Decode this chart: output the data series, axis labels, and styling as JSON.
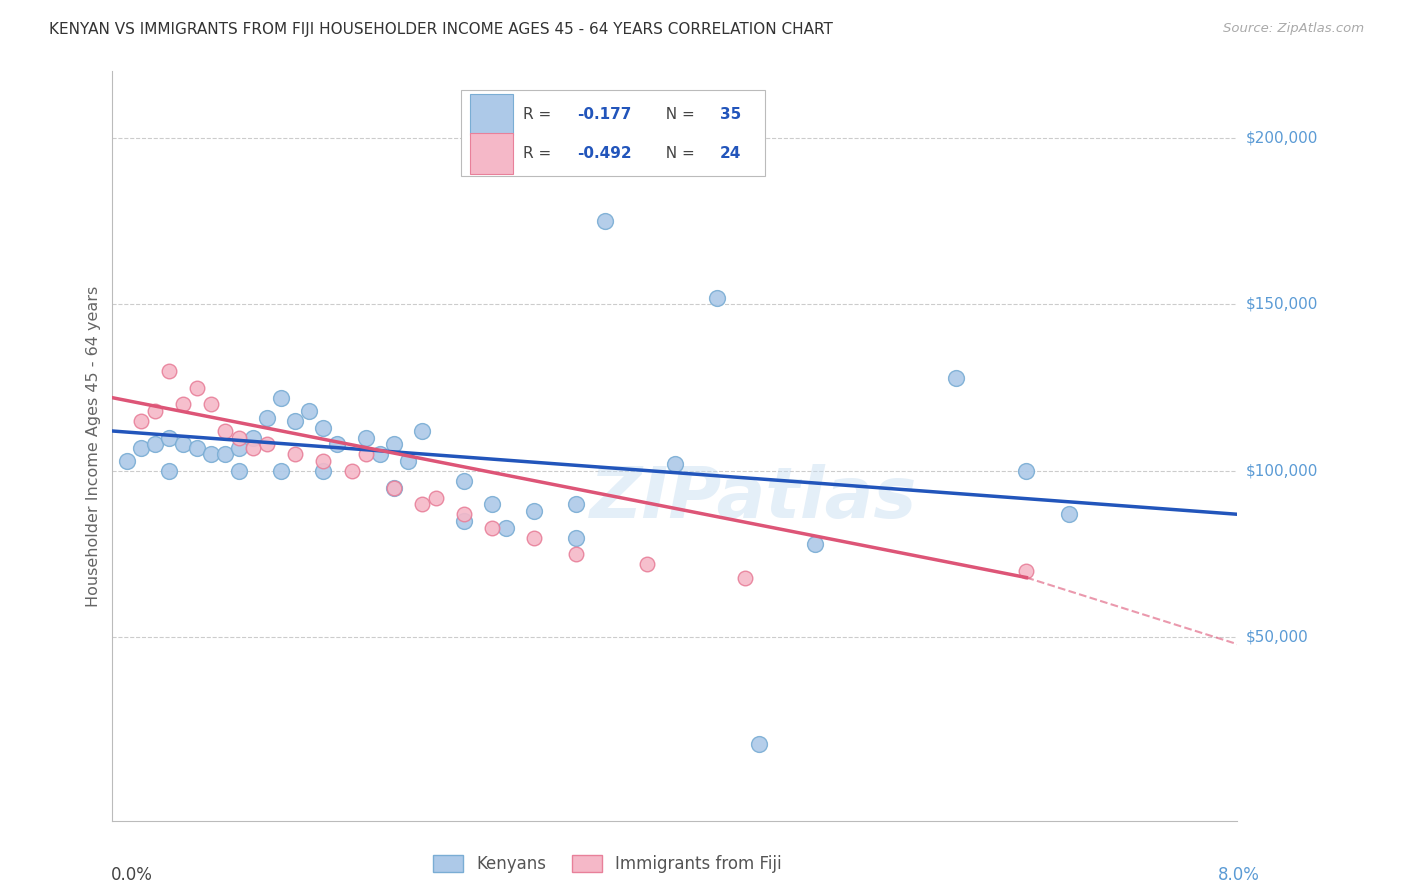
{
  "title": "KENYAN VS IMMIGRANTS FROM FIJI HOUSEHOLDER INCOME AGES 45 - 64 YEARS CORRELATION CHART",
  "source": "Source: ZipAtlas.com",
  "ylabel": "Householder Income Ages 45 - 64 years",
  "xlim": [
    0.0,
    0.08
  ],
  "ylim": [
    -5000,
    220000
  ],
  "background_color": "#ffffff",
  "kenyan_color": "#adc9e8",
  "kenyan_edge_color": "#7aadd4",
  "fiji_color": "#f5b8c8",
  "fiji_edge_color": "#e8809a",
  "trend_kenyan_color": "#2255bb",
  "trend_fiji_color": "#dd5577",
  "grid_color": "#cccccc",
  "watermark": "ZIPatlas",
  "kenyan_x": [
    0.001,
    0.002,
    0.003,
    0.004,
    0.005,
    0.006,
    0.007,
    0.008,
    0.009,
    0.01,
    0.011,
    0.012,
    0.013,
    0.014,
    0.015,
    0.016,
    0.018,
    0.019,
    0.02,
    0.021,
    0.022,
    0.025,
    0.027,
    0.03,
    0.033,
    0.035,
    0.04,
    0.043,
    0.046,
    0.05,
    0.06,
    0.065,
    0.068
  ],
  "kenyan_y": [
    103000,
    107000,
    108000,
    110000,
    108000,
    107000,
    105000,
    105000,
    107000,
    110000,
    116000,
    122000,
    115000,
    118000,
    113000,
    108000,
    110000,
    105000,
    108000,
    103000,
    112000,
    97000,
    90000,
    88000,
    90000,
    175000,
    102000,
    152000,
    18000,
    78000,
    128000,
    100000,
    87000
  ],
  "kenyan_x2": [
    0.004,
    0.009,
    0.012,
    0.015,
    0.02,
    0.025,
    0.028,
    0.033
  ],
  "kenyan_y2": [
    100000,
    100000,
    100000,
    100000,
    95000,
    85000,
    83000,
    80000
  ],
  "fiji_x": [
    0.002,
    0.003,
    0.004,
    0.005,
    0.006,
    0.007,
    0.008,
    0.009,
    0.01,
    0.011,
    0.013,
    0.015,
    0.017,
    0.018,
    0.02,
    0.022,
    0.023,
    0.025,
    0.027,
    0.03,
    0.033,
    0.038,
    0.045,
    0.065
  ],
  "fiji_y": [
    115000,
    118000,
    130000,
    120000,
    125000,
    120000,
    112000,
    110000,
    107000,
    108000,
    105000,
    103000,
    100000,
    105000,
    95000,
    90000,
    92000,
    87000,
    83000,
    80000,
    75000,
    72000,
    68000,
    70000
  ],
  "trend_k_x0": 0.0,
  "trend_k_y0": 112000,
  "trend_k_x1": 0.08,
  "trend_k_y1": 87000,
  "trend_f_x0": 0.0,
  "trend_f_y0": 122000,
  "trend_f_x1": 0.065,
  "trend_f_y1": 68000,
  "trend_f_dash_x0": 0.065,
  "trend_f_dash_y0": 68000,
  "trend_f_dash_x1": 0.08,
  "trend_f_dash_y1": 48000
}
